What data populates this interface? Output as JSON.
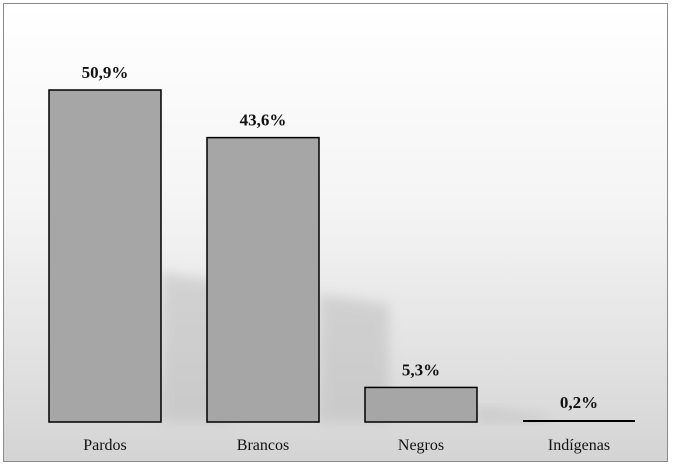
{
  "chart_data": {
    "type": "bar",
    "categories": [
      "Pardos",
      "Brancos",
      "Negros",
      "Indígenas"
    ],
    "values": [
      50.9,
      43.6,
      5.3,
      0.2
    ],
    "value_labels": [
      "50,9%",
      "43,6%",
      "5,3%",
      "0,2%"
    ],
    "title": "",
    "xlabel": "",
    "ylabel": "",
    "ylim": [
      0,
      50.9
    ],
    "grid": false,
    "legend": "none",
    "colors": {
      "bar_fill": "#a6a6a6",
      "bar_stroke": "#000000",
      "background_top": "#ffffff",
      "background_bottom": "#d4d4d4",
      "frame": "#8a8a8a"
    }
  }
}
